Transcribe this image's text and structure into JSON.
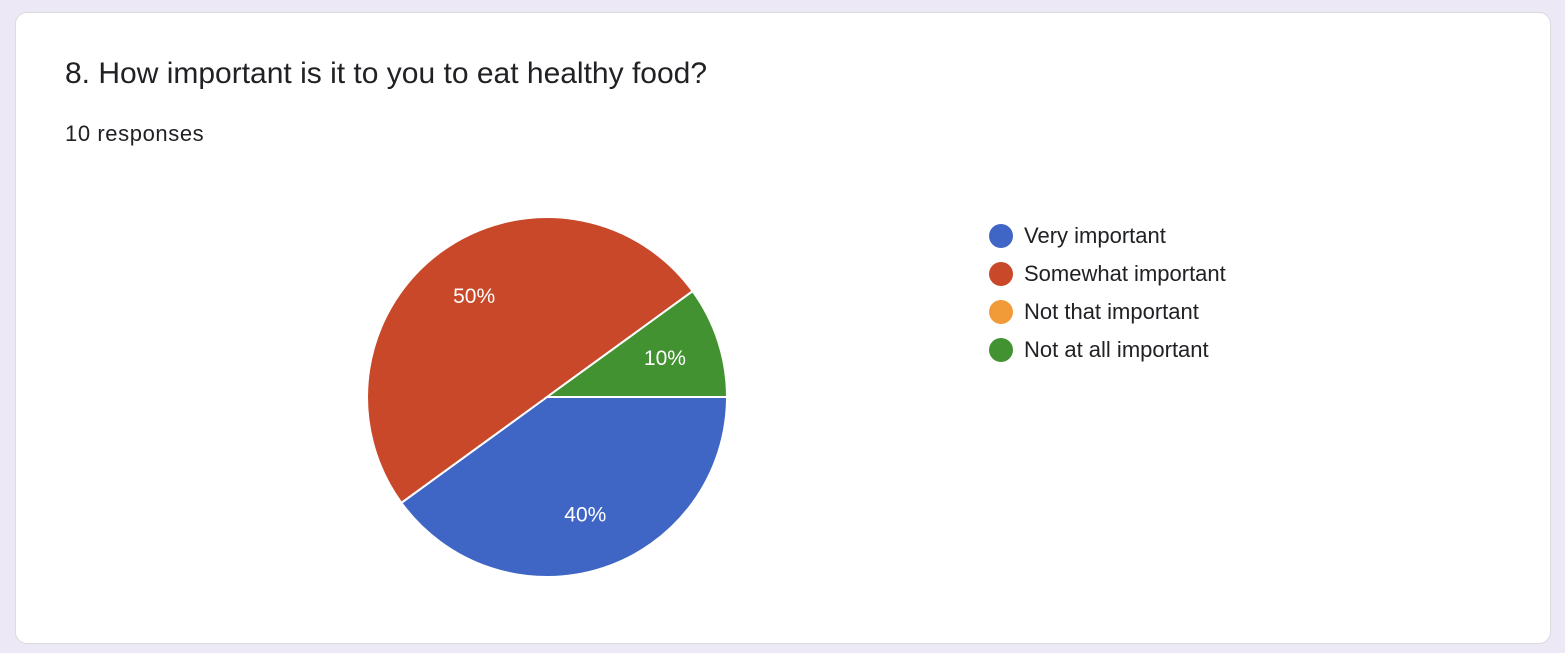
{
  "question": {
    "title": "8. How important is it to you to eat healthy food?",
    "responses": "10 responses"
  },
  "chart_data": {
    "type": "pie",
    "categories": [
      "Very important",
      "Somewhat important",
      "Not that important",
      "Not at all important"
    ],
    "values": [
      40,
      50,
      0,
      10
    ],
    "value_labels": [
      "40%",
      "50%",
      "",
      "10%"
    ],
    "colors": [
      "#4066c5",
      "#c94829",
      "#f09b38",
      "#439232"
    ],
    "legend_position": "right"
  }
}
